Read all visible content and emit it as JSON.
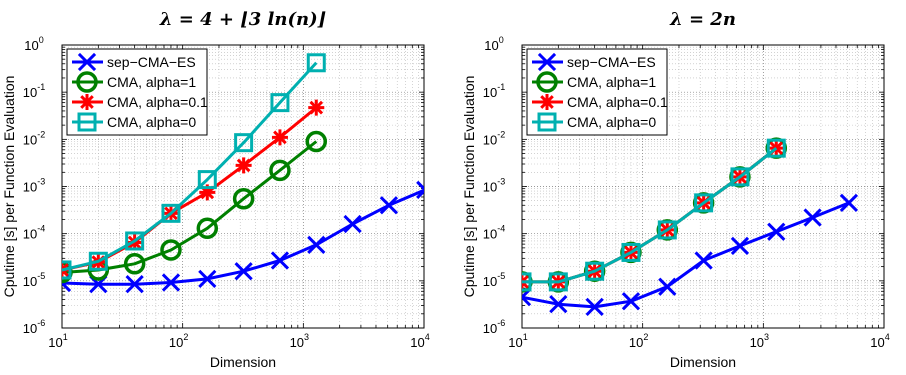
{
  "chart_data": [
    {
      "type": "line",
      "title": "λ = 4 + ⌊3 ln(n)⌋",
      "xlabel": "Dimension",
      "ylabel": "Cputime [s] per Function Evaluation",
      "xscale": "log",
      "yscale": "log",
      "xlim": [
        10,
        10000
      ],
      "ylim": [
        1e-06,
        1
      ],
      "x_ticks": [
        {
          "base": "10",
          "exp": "1"
        },
        {
          "base": "10",
          "exp": "2"
        },
        {
          "base": "10",
          "exp": "3"
        },
        {
          "base": "10",
          "exp": "4"
        }
      ],
      "y_ticks": [
        {
          "base": "10",
          "exp": "-6"
        },
        {
          "base": "10",
          "exp": "-5"
        },
        {
          "base": "10",
          "exp": "-4"
        },
        {
          "base": "10",
          "exp": "-3"
        },
        {
          "base": "10",
          "exp": "-2"
        },
        {
          "base": "10",
          "exp": "-1"
        },
        {
          "base": "10",
          "exp": "0"
        }
      ],
      "grid": true,
      "legend_position": "top-left",
      "series": [
        {
          "name": "sep−CMA−ES",
          "color": "#0000ff",
          "marker": "x",
          "x": [
            10,
            20,
            40,
            80,
            160,
            320,
            640,
            1280,
            2560,
            5120,
            10240
          ],
          "y": [
            9e-06,
            8.5e-06,
            8.5e-06,
            9.2e-06,
            1.1e-05,
            1.6e-05,
            2.7e-05,
            5.8e-05,
            0.00016,
            0.0004,
            0.00085
          ]
        },
        {
          "name": "CMA, alpha=1",
          "color": "#008000",
          "marker": "circle",
          "x": [
            10,
            20,
            40,
            80,
            160,
            320,
            640,
            1280
          ],
          "y": [
            1.5e-05,
            1.7e-05,
            2.3e-05,
            4.5e-05,
            0.00013,
            0.00055,
            0.0022,
            0.009
          ]
        },
        {
          "name": "CMA, alpha=0.1",
          "color": "#ff0000",
          "marker": "star",
          "x": [
            10,
            20,
            40,
            80,
            160,
            320,
            640,
            1280
          ],
          "y": [
            1.7e-05,
            2.5e-05,
            6.5e-05,
            0.00027,
            0.00075,
            0.0028,
            0.011,
            0.047
          ]
        },
        {
          "name": "CMA, alpha=0",
          "color": "#00b0b0",
          "marker": "square",
          "x": [
            10,
            20,
            40,
            80,
            160,
            320,
            640,
            1280
          ],
          "y": [
            1.7e-05,
            2.6e-05,
            7e-05,
            0.00027,
            0.0014,
            0.0085,
            0.06,
            0.42
          ]
        }
      ]
    },
    {
      "type": "line",
      "title": "λ = 2n",
      "xlabel": "Dimension",
      "ylabel": "Cputime [s] per Function Evaluation",
      "xscale": "log",
      "yscale": "log",
      "xlim": [
        10,
        10000
      ],
      "ylim": [
        1e-06,
        1
      ],
      "x_ticks": [
        {
          "base": "10",
          "exp": "1"
        },
        {
          "base": "10",
          "exp": "2"
        },
        {
          "base": "10",
          "exp": "3"
        },
        {
          "base": "10",
          "exp": "4"
        }
      ],
      "y_ticks": [
        {
          "base": "10",
          "exp": "-6"
        },
        {
          "base": "10",
          "exp": "-5"
        },
        {
          "base": "10",
          "exp": "-4"
        },
        {
          "base": "10",
          "exp": "-3"
        },
        {
          "base": "10",
          "exp": "-2"
        },
        {
          "base": "10",
          "exp": "-1"
        },
        {
          "base": "10",
          "exp": "0"
        }
      ],
      "grid": true,
      "legend_position": "top-left",
      "series": [
        {
          "name": "sep−CMA−ES",
          "color": "#0000ff",
          "marker": "x",
          "x": [
            10,
            20,
            40,
            80,
            160,
            320,
            640,
            1280,
            2560,
            5120
          ],
          "y": [
            4.5e-06,
            3.2e-06,
            2.8e-06,
            3.7e-06,
            7.5e-06,
            2.7e-05,
            5.5e-05,
            0.00011,
            0.00022,
            0.00045
          ]
        },
        {
          "name": "CMA, alpha=1",
          "color": "#008000",
          "marker": "circle",
          "x": [
            10,
            20,
            40,
            80,
            160,
            320,
            640,
            1280
          ],
          "y": [
            9.5e-06,
            9.5e-06,
            1.6e-05,
            4e-05,
            0.00012,
            0.00045,
            0.0016,
            0.0065
          ]
        },
        {
          "name": "CMA, alpha=0.1",
          "color": "#ff0000",
          "marker": "star",
          "x": [
            10,
            20,
            40,
            80,
            160,
            320,
            640,
            1280
          ],
          "y": [
            9.5e-06,
            9.5e-06,
            1.6e-05,
            4e-05,
            0.00012,
            0.00045,
            0.0016,
            0.0065
          ]
        },
        {
          "name": "CMA, alpha=0",
          "color": "#00b0b0",
          "marker": "square",
          "x": [
            10,
            20,
            40,
            80,
            160,
            320,
            640,
            1280
          ],
          "y": [
            9.5e-06,
            9.5e-06,
            1.6e-05,
            4e-05,
            0.00012,
            0.00045,
            0.0016,
            0.0065
          ]
        }
      ]
    }
  ]
}
